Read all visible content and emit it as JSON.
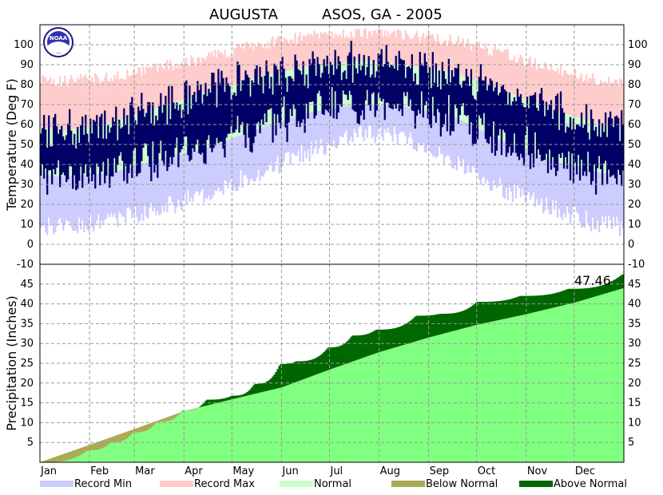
{
  "chart_data": {
    "title_station": "AUGUSTA",
    "title_location": "ASOS, GA - 2005",
    "temperature_panel": {
      "type": "bar",
      "ylabel": "Temperature (Deg F)",
      "ylim": [
        -10,
        110
      ],
      "yticks": [
        "-10",
        "0",
        "10",
        "20",
        "30",
        "40",
        "50",
        "60",
        "70",
        "80",
        "90",
        "100"
      ],
      "normal_high_monthly": [
        57,
        61,
        69,
        77,
        84,
        89,
        92,
        90,
        86,
        77,
        68,
        60
      ],
      "normal_low_monthly": [
        34,
        36,
        43,
        49,
        58,
        66,
        70,
        69,
        64,
        52,
        42,
        36
      ],
      "record_high_monthly": [
        82,
        84,
        89,
        94,
        100,
        104,
        106,
        105,
        102,
        96,
        88,
        82
      ],
      "record_low_monthly": [
        8,
        12,
        18,
        26,
        36,
        46,
        55,
        54,
        42,
        28,
        18,
        10
      ]
    },
    "precipitation_panel": {
      "type": "area",
      "ylabel": "Precipitation (Inches)",
      "ylim": [
        0,
        50
      ],
      "yticks": [
        "5",
        "10",
        "15",
        "20",
        "25",
        "30",
        "35",
        "40",
        "45"
      ],
      "total_label": "47.46",
      "x_days": [
        0,
        30,
        44,
        58,
        73,
        89,
        104,
        120,
        134,
        150,
        160,
        180,
        195,
        210,
        235,
        250,
        273,
        300,
        330,
        364
      ],
      "observed_cumulative": [
        0,
        3.0,
        5.0,
        7.5,
        10.2,
        13.0,
        15.8,
        16.8,
        19.8,
        24.8,
        25.5,
        29.0,
        32.0,
        33.5,
        37.0,
        37.5,
        40.5,
        42.0,
        43.8,
        47.46
      ],
      "normal_cumulative_monthly_end": [
        4.4,
        8.4,
        12.9,
        15.9,
        18.9,
        23.4,
        27.8,
        31.5,
        34.7,
        37.4,
        40.3,
        44.0
      ]
    },
    "months": [
      "Jan",
      "Feb",
      "Mar",
      "Apr",
      "May",
      "Jun",
      "Jul",
      "Aug",
      "Sep",
      "Oct",
      "Nov",
      "Dec"
    ],
    "legend": [
      {
        "label": "Record Min",
        "color": "#ccccff"
      },
      {
        "label": "Record Max",
        "color": "#ffcccc"
      },
      {
        "label": "Normal",
        "color": "#ccffcc"
      },
      {
        "label": "Below Normal",
        "color": "#aaaa55"
      },
      {
        "label": "Above Normal",
        "color": "#006600"
      }
    ],
    "colors": {
      "observed_range": "#000066",
      "normal_precip_fill": "#80ff80",
      "grid": "#9a9a9a"
    },
    "logo_text": "NOAA",
    "logo_icon": "noaa-logo-icon"
  }
}
